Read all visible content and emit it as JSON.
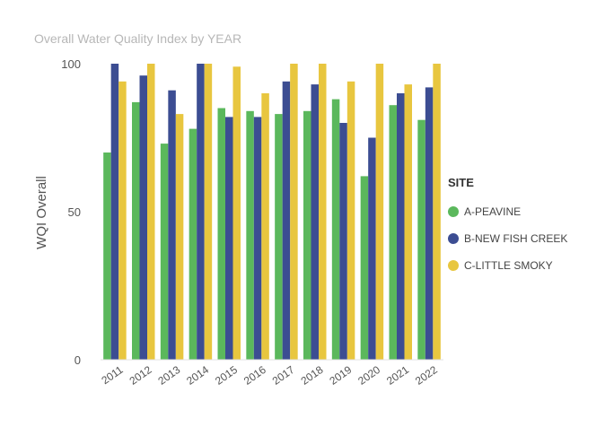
{
  "chart_data": {
    "type": "bar",
    "title": "Overall Water Quality Index by YEAR",
    "xlabel": "",
    "ylabel": "WQI Overall",
    "ylim": [
      0,
      100
    ],
    "yticks": [
      0,
      50,
      100
    ],
    "categories": [
      "2011",
      "2012",
      "2013",
      "2014",
      "2015",
      "2016",
      "2017",
      "2018",
      "2019",
      "2020",
      "2021",
      "2022"
    ],
    "legend_title": "SITE",
    "legend_position": "right",
    "grid": false,
    "series": [
      {
        "name": "A-PEAVINE",
        "color": "#5BB85C",
        "values": [
          70,
          87,
          73,
          78,
          85,
          84,
          83,
          84,
          88,
          62,
          86,
          81
        ]
      },
      {
        "name": "B-NEW FISH CREEK",
        "color": "#3C4D92",
        "values": [
          100,
          96,
          91,
          100,
          82,
          82,
          94,
          93,
          80,
          75,
          90,
          92
        ]
      },
      {
        "name": "C-LITTLE SMOKY",
        "color": "#E8C63F",
        "values": [
          94,
          100,
          83,
          100,
          99,
          90,
          100,
          100,
          94,
          100,
          93,
          100
        ]
      }
    ]
  }
}
